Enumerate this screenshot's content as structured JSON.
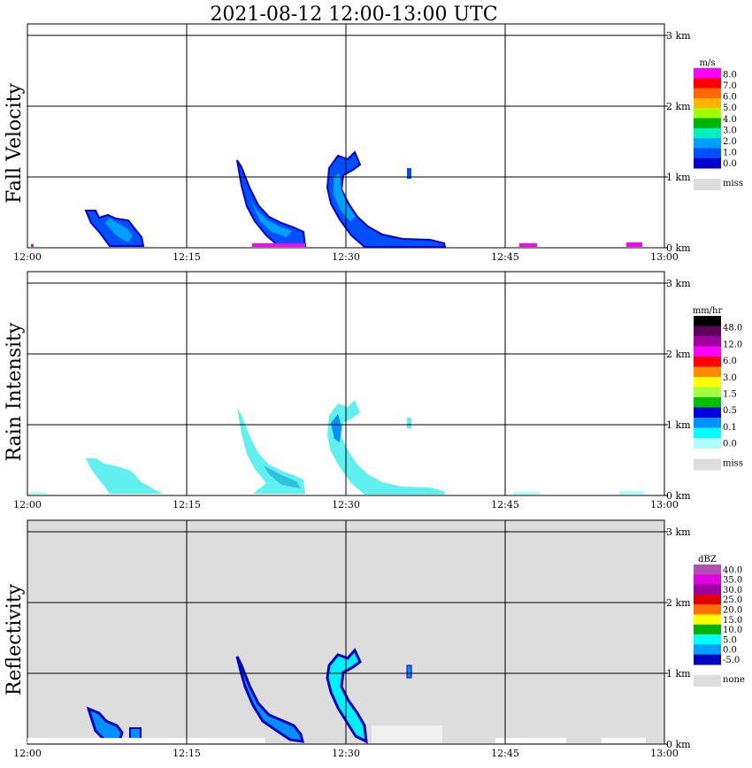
{
  "title": "2021-08-12   12:00-13:00 UTC",
  "chart_data": [
    {
      "type": "heatmap",
      "panel": "Fall Velocity",
      "ylabel": "Fall Velocity",
      "x_ticks": [
        "12:00",
        "12:15",
        "12:30",
        "12:45",
        "13:00"
      ],
      "x_range": [
        0,
        60
      ],
      "y_ticks": [
        "0 km",
        "1 km",
        "2 km",
        "3 km"
      ],
      "y_range": [
        0,
        3.0
      ],
      "grid": true,
      "background": "#ffffff",
      "colorbar": {
        "unit": "m/s",
        "labels": [
          "8.0",
          "7.0",
          "6.0",
          "5.0",
          "4.0",
          "3.0",
          "2.0",
          "1.0",
          "0.0"
        ],
        "colors": [
          "#ff00ff",
          "#ff0000",
          "#ff6a00",
          "#ffb400",
          "#a0ff00",
          "#00b400",
          "#00f0c0",
          "#00a0ff",
          "#0050ff",
          "#0000cc"
        ],
        "missing_label": "miss",
        "missing_color": "#dddddd"
      },
      "features": [
        {
          "kind": "streak",
          "t_start": 5.5,
          "t_end": 10.5,
          "h_top": 0.5,
          "h_bottom": 0.05,
          "color": "#0050ff"
        },
        {
          "kind": "streak",
          "t_start": 20.2,
          "t_end": 26.0,
          "h_top": 1.2,
          "h_bottom": 0.05,
          "color": "#0050ff"
        },
        {
          "kind": "streak",
          "t_start": 28.5,
          "t_end": 38.0,
          "h_top": 1.35,
          "h_bottom": 0.05,
          "color": "#0050ff"
        },
        {
          "kind": "speck",
          "t": 36.0,
          "h": 1.0,
          "color": "#0050ff"
        }
      ]
    },
    {
      "type": "heatmap",
      "panel": "Rain Intensity",
      "ylabel": "Rain Intensity",
      "x_ticks": [
        "12:00",
        "12:15",
        "12:30",
        "12:45",
        "13:00"
      ],
      "x_range": [
        0,
        60
      ],
      "y_ticks": [
        "0 km",
        "1 km",
        "2 km",
        "3 km"
      ],
      "y_range": [
        0,
        3.0
      ],
      "grid": true,
      "background": "#ffffff",
      "colorbar": {
        "unit": "mm/hr",
        "labels": [
          "48.0",
          "12.0",
          "6.0",
          "3.0",
          "1.5",
          "0.5",
          "0.1",
          "0.0"
        ],
        "colors": [
          "#000000",
          "#600060",
          "#a000a0",
          "#ff00ff",
          "#ff0000",
          "#ff8c00",
          "#ffff00",
          "#a0ff40",
          "#00c000",
          "#0000e0",
          "#0090ff",
          "#00ffff",
          "#b0ffff"
        ],
        "missing_label": "miss",
        "missing_color": "#dddddd"
      },
      "features": [
        {
          "kind": "streak",
          "t_start": 5.5,
          "t_end": 10.5,
          "h_top": 0.5,
          "h_bottom": 0.05,
          "color": "#60f0f0"
        },
        {
          "kind": "streak",
          "t_start": 20.2,
          "t_end": 26.0,
          "h_top": 1.2,
          "h_bottom": 0.05,
          "color": "#60f0f0"
        },
        {
          "kind": "streak",
          "t_start": 28.5,
          "t_end": 38.0,
          "h_top": 1.35,
          "h_bottom": 0.05,
          "color": "#60f0f0"
        }
      ]
    },
    {
      "type": "heatmap",
      "panel": "Reflectivity",
      "ylabel": "Reflectivity",
      "x_ticks": [
        "12:00",
        "12:15",
        "12:30",
        "12:45",
        "13:00"
      ],
      "x_range": [
        0,
        60
      ],
      "y_ticks": [
        "0 km",
        "1 km",
        "2 km",
        "3 km"
      ],
      "y_range": [
        0,
        3.0
      ],
      "grid": true,
      "background": "#dddddd",
      "colorbar": {
        "unit": "dBZ",
        "labels": [
          "40.0",
          "35.0",
          "30.0",
          "25.0",
          "20.0",
          "15.0",
          "10.0",
          "5.0",
          "0.0",
          "-5.0"
        ],
        "colors": [
          "#b050b0",
          "#e000e0",
          "#a000a0",
          "#e00000",
          "#ff7000",
          "#ffff00",
          "#00b000",
          "#00ffff",
          "#00a0ff",
          "#0000c0"
        ],
        "missing_label": "none",
        "missing_color": "#dddddd"
      },
      "features": [
        {
          "kind": "streak",
          "t_start": 5.8,
          "t_end": 10.5,
          "h_top": 0.5,
          "h_bottom": 0.05,
          "color": "#0090ff"
        },
        {
          "kind": "streak",
          "t_start": 20.2,
          "t_end": 26.0,
          "h_top": 1.2,
          "h_bottom": 0.05,
          "color": "#0090ff"
        },
        {
          "kind": "streak",
          "t_start": 28.5,
          "t_end": 33.0,
          "h_top": 1.35,
          "h_bottom": 0.05,
          "color": "#0090ff"
        },
        {
          "kind": "speck",
          "t": 36.0,
          "h": 1.0,
          "color": "#0090ff"
        }
      ]
    }
  ]
}
